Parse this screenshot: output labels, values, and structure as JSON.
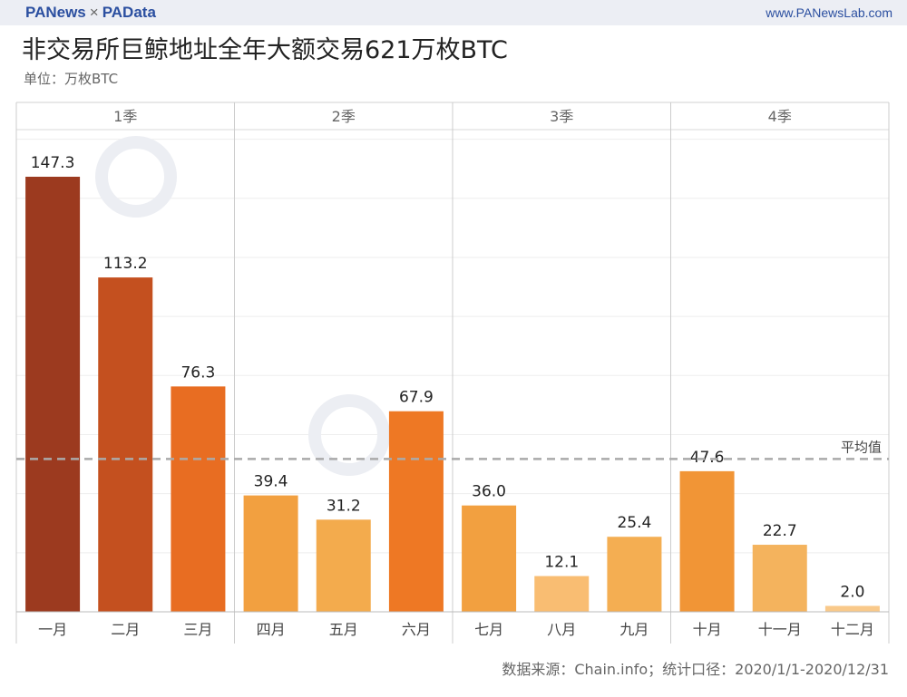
{
  "header": {
    "brand_left": "PANews",
    "separator": "×",
    "brand_right": "PAData",
    "site": "www.PANewsLab.com"
  },
  "title": "非交易所巨鲸地址全年大额交易621万枚BTC",
  "unit": "单位：万枚BTC",
  "source": "数据来源：Chain.info；统计口径：2020/1/1-2020/12/31",
  "watermarks": [
    "PANews",
    "PAData"
  ],
  "chart_data": {
    "type": "bar",
    "groups": [
      "1季",
      "2季",
      "3季",
      "4季"
    ],
    "categories": [
      "一月",
      "二月",
      "三月",
      "四月",
      "五月",
      "六月",
      "七月",
      "八月",
      "九月",
      "十月",
      "十一月",
      "十二月"
    ],
    "values": [
      147.3,
      113.2,
      76.3,
      39.4,
      31.2,
      67.9,
      36.0,
      12.1,
      25.4,
      47.6,
      22.7,
      2.0
    ],
    "colors": [
      "#9c3a1f",
      "#c4501f",
      "#e86d22",
      "#f2a040",
      "#f3ab4d",
      "#ee7824",
      "#f2a040",
      "#f9bd72",
      "#f4ae52",
      "#f19536",
      "#f4b35d",
      "#f9c98a"
    ],
    "reference_line": {
      "label": "平均值",
      "value": 51.75,
      "style": "dashed",
      "color": "#aaaaaa"
    },
    "ylim": [
      0,
      163
    ],
    "grid": true
  }
}
